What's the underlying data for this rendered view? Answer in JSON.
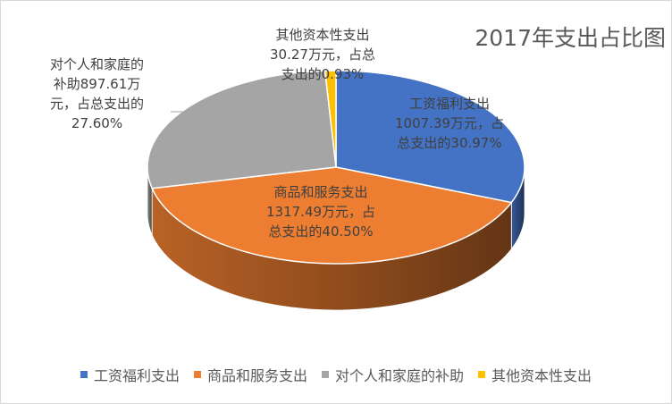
{
  "chart_data": {
    "type": "pie",
    "title": "2017年支出占比图",
    "three_d": true,
    "unit": "万元",
    "slices": [
      {
        "name": "工资福利支出",
        "value": 1007.39,
        "percent": 30.97,
        "color": "#4472C4",
        "label_lines": [
          "工资福利支出",
          "1007.39万元，占",
          "总支出的30.97%"
        ]
      },
      {
        "name": "商品和服务支出",
        "value": 1317.49,
        "percent": 40.5,
        "color": "#ED7D31",
        "label_lines": [
          "商品和服务支出",
          "1317.49万元，占",
          "总支出的40.50%"
        ]
      },
      {
        "name": "对个人和家庭的补助",
        "value": 897.61,
        "percent": 27.6,
        "color": "#A5A5A5",
        "label_lines": [
          "对个人和家庭的",
          "补助897.61万",
          "元，占总支出的",
          "27.60%"
        ]
      },
      {
        "name": "其他资本性支出",
        "value": 30.27,
        "percent": 0.93,
        "color": "#FFC000",
        "label_lines": [
          "其他资本性支出",
          "30.27万元，占总",
          "支出的0.93%"
        ]
      }
    ],
    "legend": [
      "工资福利支出",
      "商品和服务支出",
      "对个人和家庭的补助",
      "其他资本性支出"
    ],
    "legend_position": "bottom"
  }
}
